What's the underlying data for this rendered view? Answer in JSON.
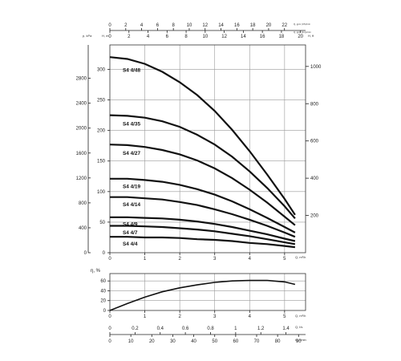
{
  "chart_data": [
    {
      "type": "line",
      "title": "",
      "top_axes": {
        "scale_1": [
          0,
          2,
          4,
          6,
          8,
          10,
          12,
          14,
          16,
          18,
          20,
          22
        ],
        "label_1": "Q, gpm (US)/min",
        "scale_2": [
          0,
          2,
          4,
          6,
          8,
          10,
          12,
          14,
          16,
          18,
          20
        ],
        "label_2": "Q, gpm (Imp)/min"
      },
      "x_axis": {
        "label": "Q, m³/h",
        "ticks": [
          0,
          1,
          2,
          3,
          4,
          5
        ],
        "range": [
          0,
          5.6
        ]
      },
      "y_left_outer": {
        "label": "p, kPa",
        "ticks": [
          0,
          400,
          800,
          1200,
          1600,
          2000,
          2400,
          2800
        ]
      },
      "y_left_inner": {
        "label": "H, m",
        "ticks": [
          0,
          50,
          100,
          150,
          200,
          250,
          300
        ],
        "range": [
          0,
          340
        ]
      },
      "y_right": {
        "label": "H, ft",
        "ticks": [
          200,
          400,
          600,
          800,
          1000
        ]
      },
      "grid": true,
      "series": [
        {
          "name": "S4 4/48",
          "x": [
            0,
            0.5,
            1,
            1.5,
            2,
            2.5,
            3,
            3.5,
            4,
            4.5,
            5,
            5.3
          ],
          "y": [
            320,
            317,
            309,
            296,
            279,
            258,
            232,
            201,
            166,
            128,
            88,
            62
          ]
        },
        {
          "name": "S4 4/35",
          "x": [
            0,
            0.5,
            1,
            1.5,
            2,
            2.5,
            3,
            3.5,
            4,
            4.5,
            5,
            5.3
          ],
          "y": [
            225,
            224,
            221,
            215,
            206,
            193,
            177,
            157,
            133,
            106,
            76,
            56
          ]
        },
        {
          "name": "S4 4/27",
          "x": [
            0,
            0.5,
            1,
            1.5,
            2,
            2.5,
            3,
            3.5,
            4,
            4.5,
            5,
            5.3
          ],
          "y": [
            177,
            176,
            173,
            168,
            161,
            151,
            138,
            122,
            103,
            82,
            59,
            45
          ]
        },
        {
          "name": "S4 4/19",
          "x": [
            0,
            0.5,
            1,
            1.5,
            2,
            2.5,
            3,
            3.5,
            4,
            4.5,
            5,
            5.3
          ],
          "y": [
            121,
            121,
            119,
            116,
            111,
            104,
            95,
            84,
            71,
            57,
            42,
            33
          ]
        },
        {
          "name": "S4 4/14",
          "x": [
            0,
            0.5,
            1,
            1.5,
            2,
            2.5,
            3,
            3.5,
            4,
            4.5,
            5,
            5.3
          ],
          "y": [
            91,
            91,
            89,
            87,
            83,
            78,
            71,
            63,
            54,
            44,
            33,
            26
          ]
        },
        {
          "name": "S4 4/9",
          "x": [
            0,
            0.5,
            1,
            1.5,
            2,
            2.5,
            3,
            3.5,
            4,
            4.5,
            5,
            5.3
          ],
          "y": [
            58,
            58,
            57,
            56,
            54,
            51,
            47,
            42,
            36,
            30,
            23,
            19
          ]
        },
        {
          "name": "S4 4/7",
          "x": [
            0,
            0.5,
            1,
            1.5,
            2,
            2.5,
            3,
            3.5,
            4,
            4.5,
            5,
            5.3
          ],
          "y": [
            44,
            44,
            43,
            42,
            40,
            38,
            35,
            31,
            27,
            22,
            17,
            14
          ]
        },
        {
          "name": "S4 4/4",
          "x": [
            0,
            0.5,
            1,
            1.5,
            2,
            2.5,
            3,
            3.5,
            4,
            4.5,
            5,
            5.3
          ],
          "y": [
            26,
            26,
            25,
            25,
            24,
            22,
            21,
            19,
            16,
            14,
            11,
            9
          ]
        }
      ]
    },
    {
      "type": "line",
      "title": "",
      "x_axis": {
        "label": "Q, m³/h",
        "ticks": [
          0,
          1,
          2,
          3,
          4,
          5
        ],
        "range": [
          0,
          5.6
        ]
      },
      "bottom_axes": {
        "scale_1": [
          0,
          0.2,
          0.4,
          0.6,
          0.8,
          1.0,
          1.2,
          1.4
        ],
        "label_1": "Q, l/s",
        "scale_2": [
          0,
          10,
          20,
          30,
          40,
          50,
          60,
          70,
          80,
          90
        ],
        "label_2": "Q, l/min"
      },
      "y_axis": {
        "label": "η, %",
        "ticks": [
          0,
          20,
          40,
          60
        ],
        "range": [
          0,
          75
        ]
      },
      "grid": true,
      "series": [
        {
          "name": "",
          "x": [
            0,
            0.5,
            1,
            1.5,
            2,
            2.5,
            3,
            3.5,
            4,
            4.5,
            5,
            5.3
          ],
          "y": [
            0,
            14,
            27,
            38,
            46,
            52,
            57,
            60,
            61,
            61,
            58,
            53
          ]
        }
      ]
    }
  ]
}
